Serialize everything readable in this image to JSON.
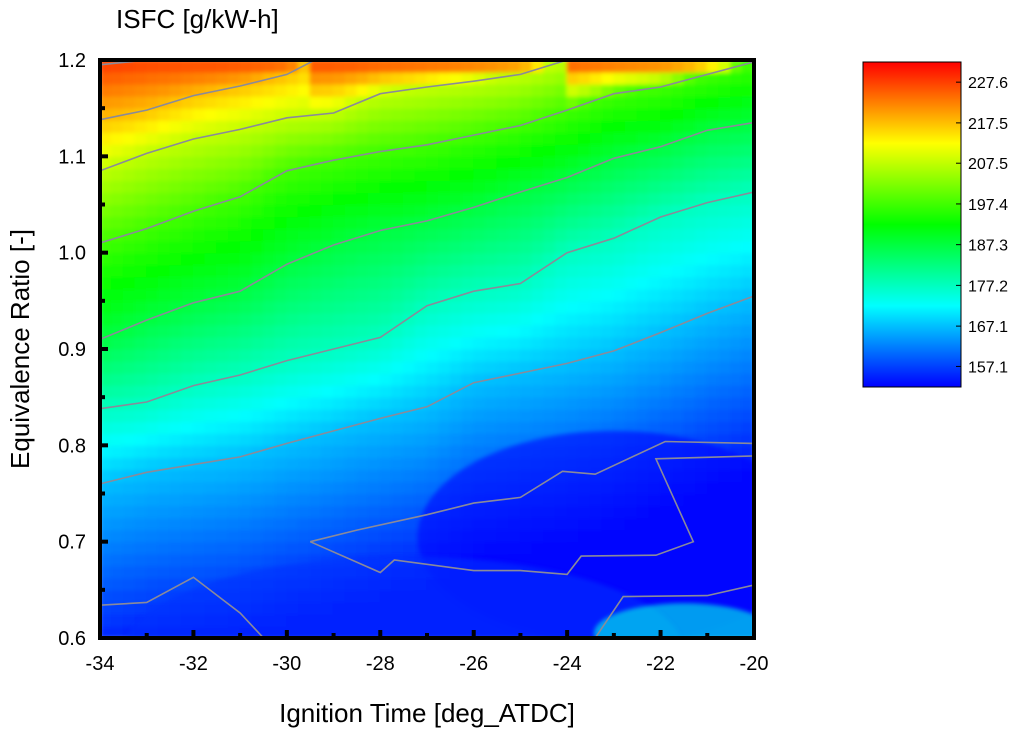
{
  "chart_data": {
    "type": "heatmap",
    "subtype": "filled-contour",
    "title": "ISFC [g/kW-h]",
    "xlabel": "Ignition Time [deg_ATDC]",
    "ylabel": "Equivalence Ratio [-]",
    "xlim": [
      -34,
      -20
    ],
    "ylim": [
      0.6,
      1.2
    ],
    "x_ticks": [
      -34,
      -32,
      -30,
      -28,
      -26,
      -24,
      -22,
      -20
    ],
    "y_ticks": [
      0.6,
      0.7,
      0.8,
      0.9,
      1.0,
      1.1,
      1.2
    ],
    "x_tick_labels": [
      "-34",
      "-32",
      "-30",
      "-28",
      "-26",
      "-24",
      "-22",
      "-20"
    ],
    "y_tick_labels": [
      "0.6",
      "0.7",
      "0.8",
      "0.9",
      "1.0",
      "1.1",
      "1.2"
    ],
    "colorbar": {
      "ticks": [
        227.6,
        217.5,
        207.5,
        197.4,
        187.3,
        177.2,
        167.1,
        157.1
      ],
      "tick_labels": [
        "227.6",
        "217.5",
        "207.5",
        "197.4",
        "187.3",
        "177.2",
        "167.1",
        "157.1"
      ],
      "range": [
        152,
        232.6
      ],
      "colormap": [
        "#0000ff",
        "#00ffff",
        "#00ff00",
        "#ffff00",
        "#ff0000"
      ]
    },
    "contour_lines": [
      {
        "level_order": 1,
        "points": [
          [
            -34,
            1.195
          ],
          [
            -33,
            1.2
          ]
        ]
      },
      {
        "level_order": 2,
        "points": [
          [
            -34,
            1.138
          ],
          [
            -33,
            1.148
          ],
          [
            -32,
            1.163
          ],
          [
            -31,
            1.173
          ],
          [
            -30,
            1.185
          ],
          [
            -29.4,
            1.2
          ]
        ]
      },
      {
        "level_order": 3,
        "points": [
          [
            -34,
            1.085
          ],
          [
            -33,
            1.103
          ],
          [
            -32,
            1.118
          ],
          [
            -31,
            1.128
          ],
          [
            -30,
            1.14
          ],
          [
            -29,
            1.145
          ],
          [
            -28,
            1.165
          ],
          [
            -27,
            1.172
          ],
          [
            -26,
            1.178
          ],
          [
            -25,
            1.185
          ],
          [
            -24,
            1.2
          ]
        ]
      },
      {
        "level_order": 4,
        "points": [
          [
            -34,
            1.01
          ],
          [
            -33,
            1.025
          ],
          [
            -32,
            1.043
          ],
          [
            -31,
            1.058
          ],
          [
            -30,
            1.085
          ],
          [
            -29,
            1.096
          ],
          [
            -28,
            1.105
          ],
          [
            -27,
            1.112
          ],
          [
            -26,
            1.122
          ],
          [
            -25,
            1.132
          ],
          [
            -24,
            1.148
          ],
          [
            -23,
            1.165
          ],
          [
            -22,
            1.172
          ],
          [
            -21,
            1.185
          ],
          [
            -20,
            1.198
          ]
        ]
      },
      {
        "level_order": 5,
        "points": [
          [
            -34,
            0.91
          ],
          [
            -33,
            0.93
          ],
          [
            -32,
            0.948
          ],
          [
            -31,
            0.96
          ],
          [
            -30,
            0.988
          ],
          [
            -29,
            1.008
          ],
          [
            -28,
            1.023
          ],
          [
            -27,
            1.033
          ],
          [
            -26,
            1.047
          ],
          [
            -25,
            1.063
          ],
          [
            -24,
            1.078
          ],
          [
            -23,
            1.098
          ],
          [
            -22,
            1.11
          ],
          [
            -21,
            1.127
          ],
          [
            -20,
            1.135
          ]
        ]
      },
      {
        "level_order": 6,
        "points": [
          [
            -34,
            0.838
          ],
          [
            -33,
            0.845
          ],
          [
            -32,
            0.862
          ],
          [
            -31,
            0.873
          ],
          [
            -30,
            0.888
          ],
          [
            -29,
            0.9
          ],
          [
            -28,
            0.912
          ],
          [
            -27,
            0.945
          ],
          [
            -26,
            0.96
          ],
          [
            -25,
            0.968
          ],
          [
            -24,
            1.0
          ],
          [
            -23,
            1.015
          ],
          [
            -22,
            1.037
          ],
          [
            -21,
            1.052
          ],
          [
            -20,
            1.063
          ]
        ]
      },
      {
        "level_order": 7,
        "points": [
          [
            -34,
            0.76
          ],
          [
            -33,
            0.772
          ],
          [
            -32,
            0.78
          ],
          [
            -31,
            0.788
          ],
          [
            -30,
            0.802
          ],
          [
            -29,
            0.815
          ],
          [
            -28,
            0.828
          ],
          [
            -27,
            0.84
          ],
          [
            -26,
            0.865
          ],
          [
            -25,
            0.875
          ],
          [
            -24,
            0.885
          ],
          [
            -23,
            0.898
          ],
          [
            -22,
            0.917
          ],
          [
            -21,
            0.937
          ],
          [
            -20,
            0.955
          ]
        ]
      },
      {
        "level_order": 8,
        "points": [
          [
            -34,
            0.634
          ],
          [
            -33,
            0.637
          ],
          [
            -32,
            0.663
          ],
          [
            -31,
            0.626
          ],
          [
            -30.5,
            0.6
          ]
        ]
      },
      {
        "level_order": 8,
        "points": [
          [
            -29.5,
            0.7
          ],
          [
            -28.5,
            0.712
          ],
          [
            -27,
            0.728
          ],
          [
            -26,
            0.74
          ],
          [
            -25,
            0.746
          ],
          [
            -24.1,
            0.773
          ],
          [
            -23.4,
            0.77
          ],
          [
            -21.9,
            0.804
          ],
          [
            -20,
            0.802
          ]
        ]
      },
      {
        "level_order": 8,
        "points": [
          [
            -29.5,
            0.7
          ],
          [
            -28,
            0.668
          ],
          [
            -27.7,
            0.681
          ],
          [
            -26,
            0.67
          ],
          [
            -25,
            0.67
          ],
          [
            -24,
            0.666
          ],
          [
            -23.7,
            0.685
          ],
          [
            -22.1,
            0.686
          ],
          [
            -21.3,
            0.7
          ],
          [
            -22.1,
            0.786
          ],
          [
            -20,
            0.789
          ]
        ]
      },
      {
        "level_order": 8,
        "points": [
          [
            -23.4,
            0.6
          ],
          [
            -22.8,
            0.643
          ],
          [
            -21,
            0.644
          ],
          [
            -20,
            0.655
          ]
        ]
      }
    ]
  }
}
